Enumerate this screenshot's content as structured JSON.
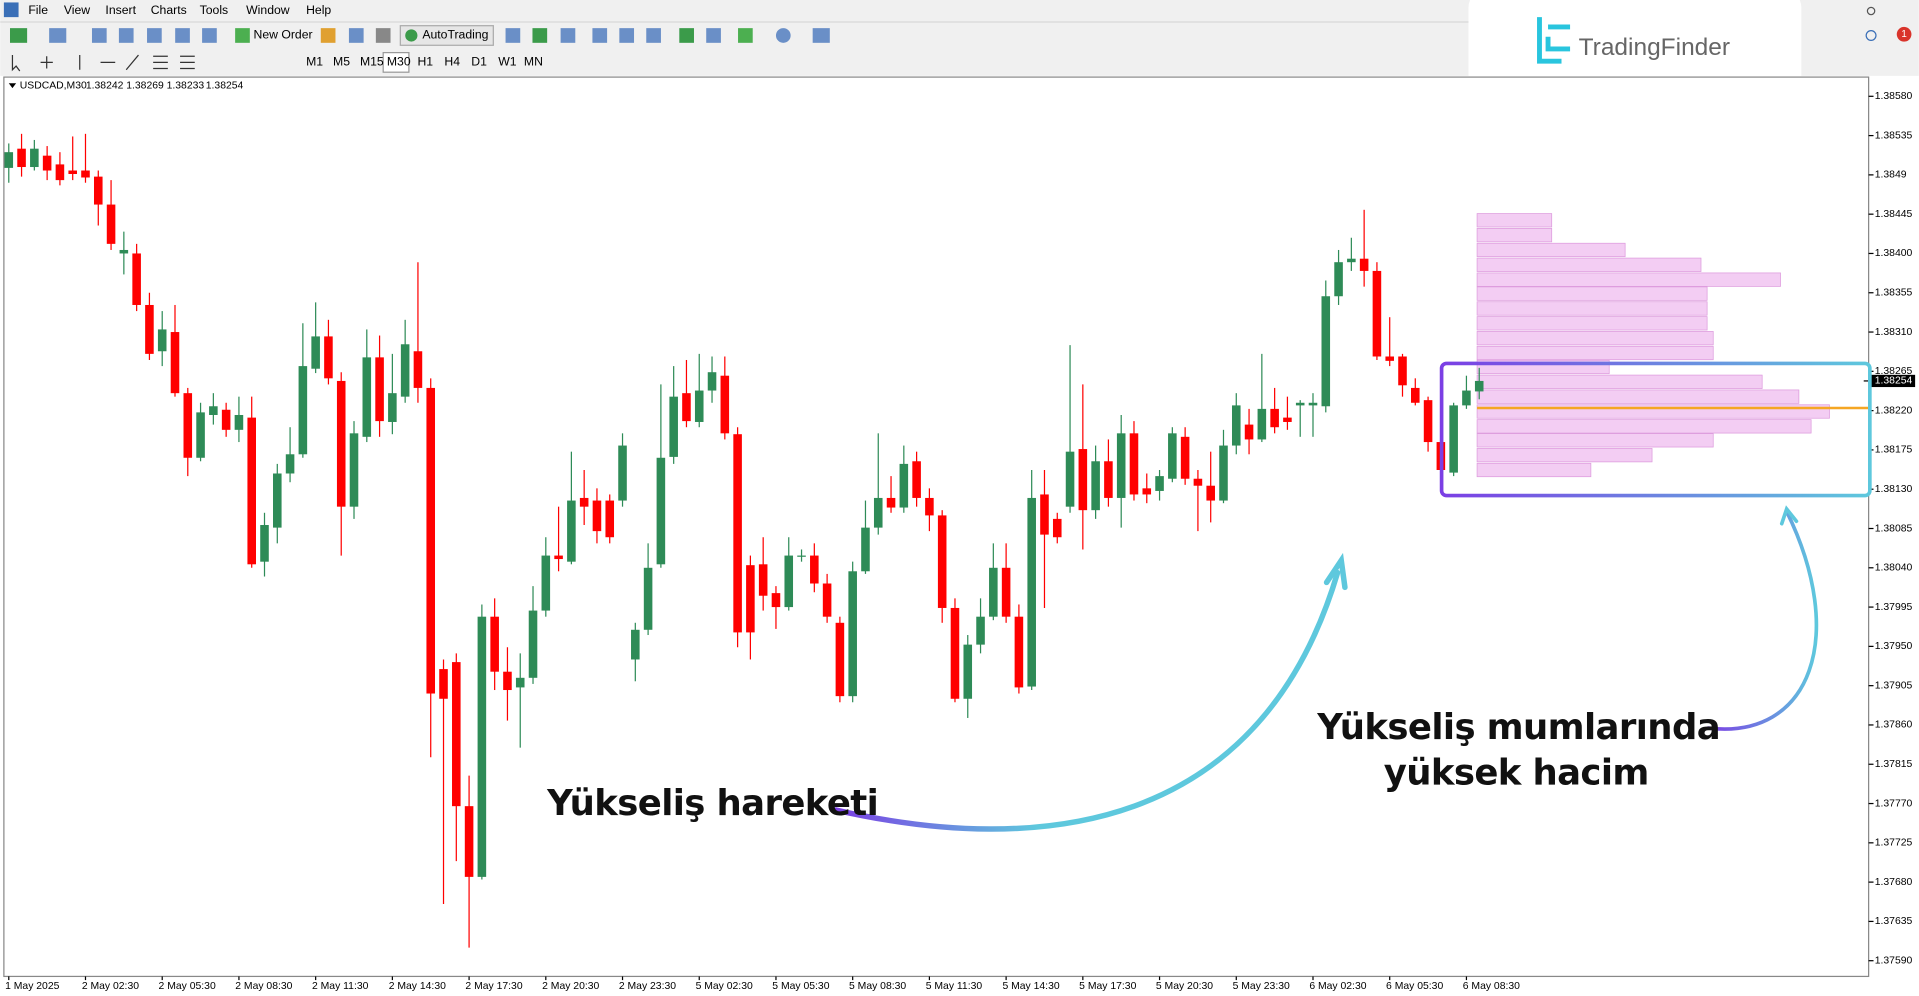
{
  "menu": [
    "File",
    "View",
    "Insert",
    "Charts",
    "Tools",
    "Window",
    "Help"
  ],
  "toolbar": {
    "new_order": "New Order",
    "auto_trading": "AutoTrading"
  },
  "timeframes": [
    "M1",
    "M5",
    "M15",
    "M30",
    "H1",
    "H4",
    "D1",
    "W1",
    "MN"
  ],
  "logo": "TradingFinder",
  "notifications": 1,
  "chart_data": {
    "type": "candlestick",
    "title": "USDCAD,M30",
    "up_color": "#2e8b57",
    "down_color": "#ff0000",
    "categories": [
      "1 May 2025",
      null,
      null,
      null,
      null,
      null,
      "2 May 02:30",
      null,
      null,
      null,
      null,
      null,
      "2 May 05:30",
      null,
      null,
      null,
      null,
      null,
      "2 May 08:30",
      null,
      null,
      null,
      null,
      null,
      "2 May 11:30",
      null,
      null,
      null,
      null,
      null,
      "2 May 14:30",
      null,
      null,
      null,
      null,
      null,
      "2 May 17:30",
      null,
      null,
      null,
      null,
      null,
      "2 May 20:30",
      null,
      null,
      null,
      null,
      null,
      "2 May 23:30",
      null,
      null,
      null,
      null,
      null,
      "5 May 02:30",
      null,
      null,
      null,
      null,
      null,
      "5 May 05:30",
      null,
      null,
      null,
      null,
      null,
      "5 May 08:30",
      null,
      null,
      null,
      null,
      null,
      "5 May 11:30",
      null,
      null,
      null,
      null,
      null,
      "5 May 14:30",
      null,
      null,
      null,
      null,
      null,
      "5 May 17:30",
      null,
      null,
      null,
      null,
      null,
      "5 May 20:30",
      null,
      null,
      null,
      null,
      null,
      "5 May 23:30",
      null,
      null,
      null,
      null,
      null,
      "6 May 02:30",
      null,
      null,
      null,
      null,
      null,
      "6 May 05:30",
      null,
      null,
      null,
      null,
      null,
      "6 May 08:30",
      null
    ],
    "open": [
      1.38498,
      1.3852,
      1.38499,
      1.38512,
      1.38502,
      1.38495,
      1.38495,
      1.38488,
      1.38456,
      1.384,
      1.384,
      1.38341,
      1.38288,
      1.3831,
      1.3824,
      1.38166,
      1.38215,
      1.38221,
      1.38198,
      1.38212,
      1.38047,
      1.38086,
      1.38148,
      1.3817,
      1.38268,
      1.38305,
      1.38254,
      1.3811,
      1.3819,
      1.38281,
      1.38207,
      1.38236,
      1.38288,
      1.38246,
      1.37924,
      1.37932,
      1.37767,
      1.37686,
      1.37984,
      1.37921,
      1.37903,
      1.37914,
      1.37991,
      1.38054,
      1.38047,
      1.3812,
      1.38117,
      1.38117,
      1.38117,
      1.37935,
      1.37969,
      1.38044,
      1.38167,
      1.3824,
      1.38207,
      1.38243,
      1.3826,
      1.38193,
      1.38043,
      1.38044,
      1.38011,
      1.37995,
      1.38053,
      1.38054,
      1.38022,
      1.37977,
      1.37893,
      1.38036,
      1.38086,
      1.3812,
      1.38109,
      1.38162,
      1.3812,
      1.381,
      1.37994,
      1.3789,
      1.37952,
      1.37984,
      1.3804,
      1.37984,
      1.37904,
      1.38124,
      1.38096,
      1.3811,
      1.38176,
      1.38106,
      1.38162,
      1.3812,
      1.38194,
      1.38131,
      1.38128,
      1.38142,
      1.3819,
      1.38142,
      1.38134,
      1.38117,
      1.3818,
      1.38204,
      1.38187,
      1.38222,
      1.38212,
      1.38226,
      1.38226,
      1.38225,
      1.38351,
      1.3839,
      1.38394,
      1.3838,
      1.38282,
      1.38282,
      1.38246,
      1.38232,
      1.38184,
      1.38149,
      1.38226,
      1.38242
    ],
    "high": [
      1.38526,
      1.38537,
      1.3853,
      1.38523,
      1.38516,
      1.38534,
      1.38537,
      1.38495,
      1.38484,
      1.38425,
      1.38411,
      1.38355,
      1.38334,
      1.38341,
      1.38246,
      1.38229,
      1.3824,
      1.38229,
      1.38236,
      1.38236,
      1.38103,
      1.38159,
      1.38201,
      1.3832,
      1.38344,
      1.38324,
      1.38264,
      1.38208,
      1.38313,
      1.38306,
      1.38285,
      1.38324,
      1.3839,
      1.38257,
      1.37935,
      1.37942,
      1.37802,
      1.37998,
      1.38005,
      1.37949,
      1.37942,
      1.38019,
      1.38075,
      1.3811,
      1.38173,
      1.38152,
      1.38131,
      1.38124,
      1.38194,
      1.37977,
      1.38068,
      1.3825,
      1.38271,
      1.38278,
      1.38285,
      1.38282,
      1.38282,
      1.38201,
      1.38054,
      1.38075,
      1.38019,
      1.38075,
      1.38061,
      1.38068,
      1.38033,
      1.37984,
      1.38047,
      1.38117,
      1.38194,
      1.38145,
      1.3818,
      1.38173,
      1.38131,
      1.38106,
      1.38005,
      1.37963,
      1.38005,
      1.38068,
      1.38068,
      1.37998,
      1.38152,
      1.38152,
      1.38103,
      1.38295,
      1.3825,
      1.3818,
      1.38187,
      1.38215,
      1.38208,
      1.38148,
      1.38152,
      1.38201,
      1.38201,
      1.38152,
      1.38173,
      1.38198,
      1.3824,
      1.38222,
      1.38285,
      1.38246,
      1.38236,
      1.38232,
      1.3824,
      1.38369,
      1.38404,
      1.38418,
      1.3845,
      1.3839,
      1.38327,
      1.38285,
      1.38257,
      1.38236,
      1.38201,
      1.38229,
      1.3826,
      1.38269
    ],
    "low": [
      1.38481,
      1.38488,
      1.38495,
      1.38484,
      1.38478,
      1.38484,
      1.38481,
      1.38432,
      1.38404,
      1.38376,
      1.38334,
      1.38278,
      1.38271,
      1.38236,
      1.38145,
      1.38162,
      1.38204,
      1.3819,
      1.38184,
      1.3804,
      1.3803,
      1.38068,
      1.38138,
      1.38166,
      1.38263,
      1.3825,
      1.38054,
      1.38096,
      1.38184,
      1.3819,
      1.38193,
      1.38229,
      1.38229,
      1.37823,
      1.37655,
      1.37704,
      1.37605,
      1.37683,
      1.379,
      1.37865,
      1.37834,
      1.37907,
      1.37984,
      1.38036,
      1.38044,
      1.38089,
      1.38068,
      1.38068,
      1.3811,
      1.3791,
      1.37963,
      1.3804,
      1.38159,
      1.38201,
      1.38201,
      1.38229,
      1.38187,
      1.37949,
      1.37935,
      1.37991,
      1.3797,
      1.37991,
      1.38047,
      1.38012,
      1.37977,
      1.37886,
      1.37886,
      1.38033,
      1.38078,
      1.38103,
      1.38103,
      1.3811,
      1.38082,
      1.37977,
      1.37886,
      1.37868,
      1.37942,
      1.3798,
      1.37977,
      1.37896,
      1.379,
      1.37994,
      1.38068,
      1.38103,
      1.38061,
      1.38096,
      1.3811,
      1.38086,
      1.38117,
      1.38114,
      1.38117,
      1.38138,
      1.38135,
      1.38082,
      1.38092,
      1.38114,
      1.3817,
      1.3817,
      1.38184,
      1.38194,
      1.38198,
      1.3819,
      1.3819,
      1.38218,
      1.38341,
      1.3838,
      1.38362,
      1.38278,
      1.38271,
      1.38236,
      1.38226,
      1.38173,
      1.38138,
      1.38145,
      1.38222,
      1.38233
    ],
    "close": [
      1.38516,
      1.38499,
      1.3852,
      1.38495,
      1.38484,
      1.38491,
      1.38487,
      1.38456,
      1.38411,
      1.38404,
      1.38341,
      1.38285,
      1.38313,
      1.3824,
      1.38166,
      1.38218,
      1.38225,
      1.38198,
      1.38215,
      1.38044,
      1.38089,
      1.38148,
      1.3817,
      1.38271,
      1.38305,
      1.38257,
      1.3811,
      1.38194,
      1.38281,
      1.38208,
      1.3824,
      1.38296,
      1.38246,
      1.37896,
      1.3789,
      1.37767,
      1.37686,
      1.37984,
      1.37921,
      1.379,
      1.37914,
      1.37991,
      1.38054,
      1.3805,
      1.38117,
      1.3811,
      1.38082,
      1.38075,
      1.3818,
      1.37969,
      1.3804,
      1.38166,
      1.38236,
      1.38208,
      1.38243,
      1.38264,
      1.38194,
      1.37966,
      1.37966,
      1.38008,
      1.37995,
      1.38054,
      1.38054,
      1.38022,
      1.37984,
      1.37893,
      1.38036,
      1.38086,
      1.3812,
      1.38109,
      1.38159,
      1.3812,
      1.381,
      1.37994,
      1.3789,
      1.37952,
      1.37984,
      1.3804,
      1.37984,
      1.37903,
      1.3812,
      1.38078,
      1.38075,
      1.38173,
      1.38106,
      1.38162,
      1.3812,
      1.38194,
      1.38124,
      1.38124,
      1.38145,
      1.38194,
      1.38142,
      1.38134,
      1.38117,
      1.3818,
      1.38226,
      1.38187,
      1.38222,
      1.38201,
      1.38207,
      1.38229,
      1.38229,
      1.38351,
      1.3839,
      1.38394,
      1.3838,
      1.38282,
      1.38277,
      1.38249,
      1.38229,
      1.38184,
      1.38152,
      1.38226,
      1.38243,
      1.38254
    ],
    "ylim": [
      1.37572,
      1.38602
    ],
    "yticks": [
      {
        "value": 1.3858,
        "label": "1.38580"
      },
      1.38535,
      1.3849,
      1.38445,
      {
        "value": 1.384,
        "label": "1.38400"
      },
      1.38355,
      {
        "value": 1.3831,
        "label": "1.38310"
      },
      1.38265,
      {
        "value": 1.3822,
        "label": "1.38220"
      },
      1.38175,
      {
        "value": 1.3813,
        "label": "1.38130"
      },
      1.38085,
      {
        "value": 1.3804,
        "label": "1.38040"
      },
      1.37995,
      {
        "value": 1.3795,
        "label": "1.37950"
      },
      1.37905,
      {
        "value": 1.3786,
        "label": "1.37860"
      },
      1.37815,
      {
        "value": 1.3777,
        "label": "1.37770"
      },
      1.37725,
      {
        "value": 1.3768,
        "label": "1.37680"
      },
      1.37635,
      {
        "value": 1.3759,
        "label": "1.37590"
      }
    ],
    "grid": false,
    "profile": {
      "color": "#f3cdf3",
      "prices": [
        1.38438,
        1.38421,
        1.38404,
        1.38387,
        1.3837,
        1.38354,
        1.38337,
        1.3832,
        1.38303,
        1.38286,
        1.3827,
        1.38253,
        1.38236,
        1.38219,
        1.38202,
        1.38186,
        1.38169,
        1.38152
      ],
      "volumes": [
        61,
        61,
        121,
        183,
        248,
        188,
        188,
        188,
        193,
        193,
        108,
        233,
        263,
        288,
        273,
        193,
        143,
        93
      ]
    },
    "poc": 1.38223,
    "poc_color": "#f5a623",
    "annotations": [
      "Yükseliş hareketi",
      "Yükseliş mumlarında",
      "yüksek hacim"
    ]
  }
}
